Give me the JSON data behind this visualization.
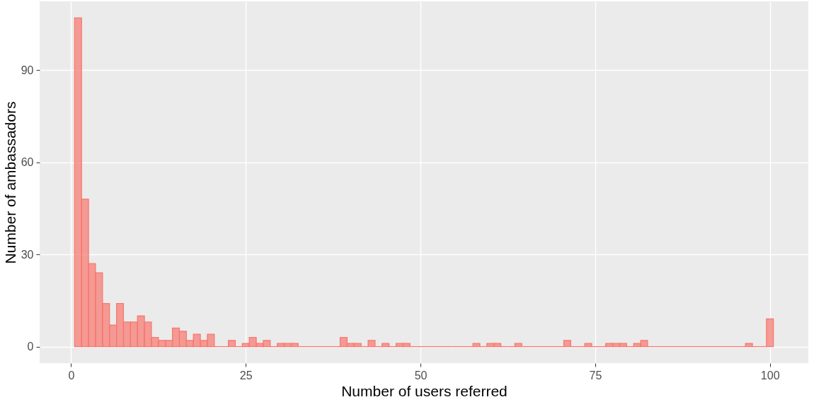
{
  "chart_data": {
    "type": "histogram",
    "xlabel": "Number of users referred",
    "ylabel": "Number of ambassadors",
    "bins": [
      0.5,
      1.5,
      2.5,
      3.5,
      4.5,
      5.5,
      6.5,
      7.5,
      8.5,
      9.5,
      10.5,
      11.5,
      12.5,
      13.5,
      14.5,
      15.5,
      16.5,
      17.5,
      18.5,
      19.5,
      20.5,
      21.5,
      22.5,
      23.5,
      24.5,
      25.5,
      26.5,
      27.5,
      28.5,
      29.5,
      30.5,
      31.5,
      32.5,
      33.5,
      34.5,
      35.5,
      36.5,
      37.5,
      38.5,
      39.5,
      40.5,
      41.5,
      42.5,
      43.5,
      44.5,
      45.5,
      46.5,
      47.5,
      48.5,
      49.5,
      50.5,
      51.5,
      52.5,
      53.5,
      54.5,
      55.5,
      56.5,
      57.5,
      58.5,
      59.5,
      60.5,
      61.5,
      62.5,
      63.5,
      64.5,
      65.5,
      66.5,
      67.5,
      68.5,
      69.5,
      70.5,
      71.5,
      72.5,
      73.5,
      74.5,
      75.5,
      76.5,
      77.5,
      78.5,
      79.5,
      80.5,
      81.5,
      82.5,
      83.5,
      84.5,
      85.5,
      86.5,
      87.5,
      88.5,
      89.5,
      90.5,
      91.5,
      92.5,
      93.5,
      94.5,
      95.5,
      96.5,
      97.5,
      98.5,
      99.5,
      100.5
    ],
    "values": [
      107,
      48,
      27,
      24,
      14,
      7,
      14,
      8,
      8,
      10,
      8,
      3,
      2,
      2,
      6,
      5,
      2,
      4,
      2,
      4,
      0,
      0,
      2,
      0,
      1,
      3,
      1,
      2,
      0,
      1,
      1,
      1,
      0,
      0,
      0,
      0,
      0,
      0,
      3,
      1,
      1,
      0,
      2,
      0,
      1,
      0,
      1,
      1,
      0,
      0,
      0,
      0,
      0,
      0,
      0,
      0,
      0,
      1,
      0,
      1,
      1,
      0,
      0,
      1,
      0,
      0,
      0,
      0,
      0,
      0,
      2,
      0,
      0,
      1,
      0,
      0,
      1,
      1,
      1,
      0,
      1,
      2,
      0,
      0,
      0,
      0,
      0,
      0,
      0,
      0,
      0,
      0,
      0,
      0,
      0,
      0,
      1,
      0,
      0,
      9
    ],
    "color": "#f8766d",
    "xlim": [
      -4.5,
      105.5
    ],
    "xticks": [
      0,
      25,
      50,
      75,
      100
    ],
    "ylim": [
      -5.4,
      112.4
    ],
    "yticks": [
      0,
      30,
      60,
      90
    ],
    "grid": true
  }
}
